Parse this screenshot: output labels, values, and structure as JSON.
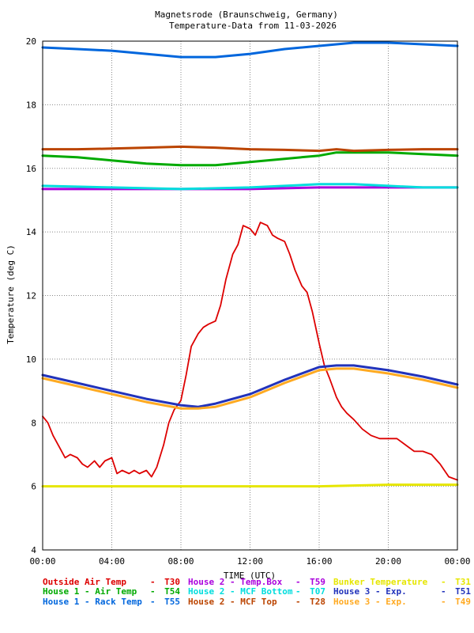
{
  "chart_data": {
    "type": "line",
    "title": "Magnetsrode (Braunschweig, Germany)",
    "subtitle": "Temperature-Data from 11-03-2026",
    "xlabel": "TIME (UTC)",
    "ylabel": "Temperature (deg C)",
    "xlim": [
      0,
      24
    ],
    "ylim": [
      4,
      20
    ],
    "x_ticks": [
      "00:00",
      "04:00",
      "08:00",
      "12:00",
      "16:00",
      "20:00",
      "00:00"
    ],
    "y_ticks": [
      "4",
      "6",
      "8",
      "10",
      "12",
      "14",
      "16",
      "18",
      "20"
    ],
    "grid": true,
    "legend_position": "bottom",
    "series": [
      {
        "name": "Outside Air Temp",
        "sensor": "T30",
        "color": "#dd0000",
        "x": [
          0,
          0.3,
          0.6,
          1.0,
          1.3,
          1.6,
          2.0,
          2.3,
          2.6,
          3.0,
          3.3,
          3.6,
          4.0,
          4.3,
          4.6,
          5.0,
          5.3,
          5.6,
          6.0,
          6.3,
          6.6,
          7.0,
          7.3,
          7.6,
          8.0,
          8.3,
          8.6,
          9.0,
          9.3,
          9.6,
          10.0,
          10.3,
          10.6,
          11.0,
          11.3,
          11.6,
          12.0,
          12.3,
          12.6,
          13.0,
          13.3,
          13.6,
          14.0,
          14.3,
          14.6,
          15.0,
          15.3,
          15.6,
          16.0,
          16.3,
          16.6,
          17.0,
          17.3,
          17.6,
          18.0,
          18.5,
          19.0,
          19.5,
          20.0,
          20.5,
          21.0,
          21.5,
          22.0,
          22.5,
          23.0,
          23.5,
          24.0
        ],
        "values": [
          8.2,
          8.0,
          7.6,
          7.2,
          6.9,
          7.0,
          6.9,
          6.7,
          6.6,
          6.8,
          6.6,
          6.8,
          6.9,
          6.4,
          6.5,
          6.4,
          6.5,
          6.4,
          6.5,
          6.3,
          6.6,
          7.3,
          8.0,
          8.4,
          8.7,
          9.5,
          10.4,
          10.8,
          11.0,
          11.1,
          11.2,
          11.7,
          12.5,
          13.3,
          13.6,
          14.2,
          14.1,
          13.9,
          14.3,
          14.2,
          13.9,
          13.8,
          13.7,
          13.3,
          12.8,
          12.3,
          12.1,
          11.5,
          10.5,
          9.8,
          9.4,
          8.8,
          8.5,
          8.3,
          8.1,
          7.8,
          7.6,
          7.5,
          7.5,
          7.5,
          7.3,
          7.1,
          7.1,
          7.0,
          6.7,
          6.3,
          6.2
        ]
      },
      {
        "name": "House 1 - Air  Temp",
        "sensor": "T54",
        "color": "#00aa00",
        "x": [
          0,
          2,
          4,
          6,
          8,
          10,
          12,
          14,
          16,
          17,
          18,
          20,
          22,
          24
        ],
        "values": [
          16.4,
          16.35,
          16.25,
          16.15,
          16.1,
          16.1,
          16.2,
          16.3,
          16.4,
          16.5,
          16.5,
          16.5,
          16.45,
          16.4
        ]
      },
      {
        "name": "House 1 - Rack Temp",
        "sensor": "T55",
        "color": "#0066dd",
        "x": [
          0,
          2,
          4,
          6,
          8,
          10,
          12,
          14,
          16,
          18,
          20,
          22,
          24
        ],
        "values": [
          19.8,
          19.75,
          19.7,
          19.6,
          19.5,
          19.5,
          19.6,
          19.75,
          19.85,
          19.95,
          19.95,
          19.9,
          19.85
        ]
      },
      {
        "name": "House 2 - Temp.Box",
        "sensor": "T59",
        "color": "#aa00dd",
        "x": [
          0,
          4,
          8,
          12,
          16,
          20,
          24
        ],
        "values": [
          15.35,
          15.35,
          15.35,
          15.35,
          15.4,
          15.4,
          15.4
        ]
      },
      {
        "name": "House 2 - MCF Bottom",
        "sensor": "T07",
        "color": "#00dddd",
        "x": [
          0,
          4,
          8,
          12,
          14,
          16,
          18,
          20,
          22,
          24
        ],
        "values": [
          15.45,
          15.4,
          15.35,
          15.4,
          15.45,
          15.5,
          15.5,
          15.45,
          15.4,
          15.4
        ]
      },
      {
        "name": "House 2 - MCF Top",
        "sensor": "T28",
        "color": "#bb4400",
        "x": [
          0,
          2,
          4,
          6,
          8,
          10,
          12,
          14,
          16,
          17,
          18,
          20,
          22,
          24
        ],
        "values": [
          16.6,
          16.6,
          16.62,
          16.65,
          16.68,
          16.65,
          16.6,
          16.58,
          16.55,
          16.6,
          16.55,
          16.58,
          16.6,
          16.6
        ]
      },
      {
        "name": "Bunker Temperature",
        "sensor": "T31",
        "color": "#e6e600",
        "x": [
          0,
          4,
          8,
          12,
          16,
          20,
          24
        ],
        "values": [
          6.0,
          6.0,
          6.0,
          6.0,
          6.0,
          6.05,
          6.05
        ]
      },
      {
        "name": "House 3 - Exp.",
        "sensor": "T51",
        "color": "#2233bb",
        "x": [
          0,
          2,
          4,
          6,
          8,
          9,
          10,
          12,
          14,
          16,
          17,
          18,
          20,
          22,
          24
        ],
        "values": [
          9.5,
          9.25,
          9.0,
          8.75,
          8.55,
          8.5,
          8.6,
          8.9,
          9.35,
          9.75,
          9.8,
          9.8,
          9.65,
          9.45,
          9.2
        ]
      },
      {
        "name": "House 3 - Exp.",
        "sensor": "T49",
        "color": "#ffaa22",
        "x": [
          0,
          2,
          4,
          6,
          8,
          9,
          10,
          12,
          14,
          16,
          17,
          18,
          20,
          22,
          24
        ],
        "values": [
          9.4,
          9.15,
          8.9,
          8.65,
          8.45,
          8.45,
          8.5,
          8.8,
          9.25,
          9.65,
          9.7,
          9.7,
          9.55,
          9.35,
          9.1
        ]
      }
    ]
  },
  "legend": {
    "sep": "-",
    "rows": [
      [
        {
          "series": 0
        },
        {
          "series": 3
        },
        {
          "series": 6
        }
      ],
      [
        {
          "series": 1
        },
        {
          "series": 4
        },
        {
          "series": 7
        }
      ],
      [
        {
          "series": 2
        },
        {
          "series": 5
        },
        {
          "series": 8
        }
      ]
    ]
  }
}
